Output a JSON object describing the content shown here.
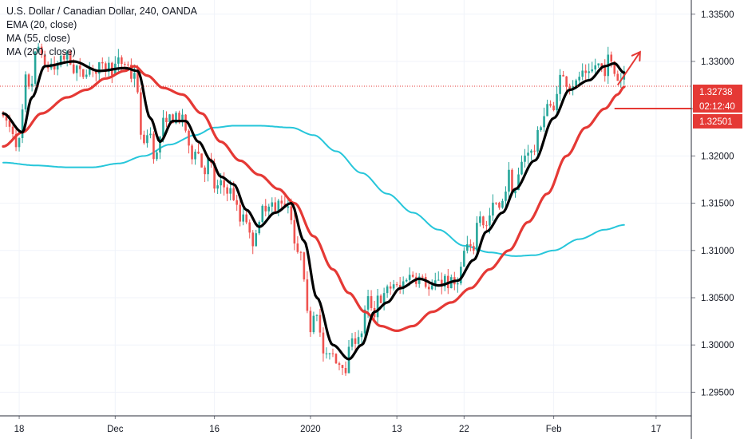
{
  "legend": {
    "title": "U.S. Dollar / Canadian Dollar, 240, OANDA",
    "ema20": "EMA (20, close)",
    "ma55": "MA (55, close)",
    "ma200": "MA (200, close)"
  },
  "price_badges": {
    "last_price": "1.32738",
    "countdown": "02:12:40",
    "level": "1.32501"
  },
  "colors": {
    "up": "#26a69a",
    "down": "#ef5350",
    "ema20": "#000000",
    "ma55": "#e53935",
    "ma200": "#26c6da",
    "drawing": "#e53935"
  },
  "chart_data": {
    "type": "candlestick",
    "title": "U.S. Dollar / Canadian Dollar, 240, OANDA",
    "ylim": [
      1.2925,
      1.3365
    ],
    "y_ticks": [
      "1.33500",
      "1.33000",
      "1.32500",
      "1.32000",
      "1.31500",
      "1.31000",
      "1.30500",
      "1.30000",
      "1.29500"
    ],
    "y_tick_values": [
      1.335,
      1.33,
      1.325,
      1.32,
      1.315,
      1.31,
      1.305,
      1.3,
      1.295
    ],
    "x_ticks": [
      "18",
      "Dec",
      "16",
      "2020",
      "13",
      "22",
      "Feb",
      "17"
    ],
    "x_tick_index": [
      5,
      35,
      66,
      96,
      123,
      144,
      172,
      204
    ],
    "x_range": [
      -1,
      215
    ],
    "series": [
      {
        "name": "EMA (20, close)",
        "anchors": [
          [
            0,
            1.3245
          ],
          [
            6,
            1.3225
          ],
          [
            9,
            1.3262
          ],
          [
            13,
            1.3295
          ],
          [
            22,
            1.33
          ],
          [
            30,
            1.329
          ],
          [
            38,
            1.3293
          ],
          [
            42,
            1.329
          ],
          [
            46,
            1.324
          ],
          [
            49,
            1.3215
          ],
          [
            53,
            1.3237
          ],
          [
            57,
            1.3237
          ],
          [
            61,
            1.3215
          ],
          [
            65,
            1.3195
          ],
          [
            68,
            1.3178
          ],
          [
            72,
            1.317
          ],
          [
            76,
            1.3143
          ],
          [
            80,
            1.3125
          ],
          [
            85,
            1.314
          ],
          [
            90,
            1.315
          ],
          [
            94,
            1.311
          ],
          [
            98,
            1.305
          ],
          [
            103,
            1.3
          ],
          [
            108,
            1.2985
          ],
          [
            112,
            1.3
          ],
          [
            116,
            1.3035
          ],
          [
            120,
            1.3045
          ],
          [
            124,
            1.306
          ],
          [
            130,
            1.307
          ],
          [
            136,
            1.3063
          ],
          [
            142,
            1.3068
          ],
          [
            147,
            1.309
          ],
          [
            151,
            1.312
          ],
          [
            156,
            1.314
          ],
          [
            160,
            1.3165
          ],
          [
            166,
            1.3195
          ],
          [
            172,
            1.324
          ],
          [
            177,
            1.327
          ],
          [
            183,
            1.328
          ],
          [
            188,
            1.3295
          ],
          [
            191,
            1.3298
          ],
          [
            194,
            1.3288
          ]
        ]
      },
      {
        "name": "MA (55, close)",
        "anchors": [
          [
            0,
            1.321
          ],
          [
            6,
            1.3225
          ],
          [
            12,
            1.3245
          ],
          [
            20,
            1.3262
          ],
          [
            26,
            1.327
          ],
          [
            32,
            1.3282
          ],
          [
            38,
            1.329
          ],
          [
            41,
            1.3295
          ],
          [
            45,
            1.3285
          ],
          [
            50,
            1.3272
          ],
          [
            56,
            1.3265
          ],
          [
            62,
            1.3245
          ],
          [
            68,
            1.3215
          ],
          [
            74,
            1.3195
          ],
          [
            80,
            1.318
          ],
          [
            86,
            1.3165
          ],
          [
            91,
            1.315
          ],
          [
            97,
            1.3115
          ],
          [
            103,
            1.308
          ],
          [
            108,
            1.3055
          ],
          [
            113,
            1.3035
          ],
          [
            118,
            1.302
          ],
          [
            123,
            1.3015
          ],
          [
            128,
            1.302
          ],
          [
            134,
            1.3035
          ],
          [
            140,
            1.3045
          ],
          [
            146,
            1.306
          ],
          [
            152,
            1.308
          ],
          [
            158,
            1.31
          ],
          [
            164,
            1.313
          ],
          [
            170,
            1.316
          ],
          [
            176,
            1.32
          ],
          [
            182,
            1.323
          ],
          [
            188,
            1.325
          ],
          [
            192,
            1.3265
          ],
          [
            194,
            1.3273
          ]
        ]
      },
      {
        "name": "MA (200, close)",
        "anchors": [
          [
            0,
            1.3193
          ],
          [
            10,
            1.319
          ],
          [
            20,
            1.3188
          ],
          [
            28,
            1.3188
          ],
          [
            36,
            1.3192
          ],
          [
            44,
            1.32
          ],
          [
            52,
            1.3212
          ],
          [
            60,
            1.3222
          ],
          [
            66,
            1.323
          ],
          [
            72,
            1.3232
          ],
          [
            80,
            1.3232
          ],
          [
            90,
            1.323
          ],
          [
            97,
            1.3222
          ],
          [
            104,
            1.3205
          ],
          [
            112,
            1.3182
          ],
          [
            120,
            1.316
          ],
          [
            128,
            1.314
          ],
          [
            136,
            1.3122
          ],
          [
            144,
            1.3105
          ],
          [
            152,
            1.3098
          ],
          [
            160,
            1.3094
          ],
          [
            166,
            1.3095
          ],
          [
            172,
            1.31
          ],
          [
            180,
            1.3112
          ],
          [
            188,
            1.3122
          ],
          [
            194,
            1.3127
          ]
        ]
      }
    ],
    "annotations": {
      "last_price": 1.32738,
      "level": 1.32501,
      "arrow_from": [
        192,
        1.3275
      ],
      "arrow_to": [
        199,
        1.331
      ],
      "level_line_start_index": 191
    }
  }
}
